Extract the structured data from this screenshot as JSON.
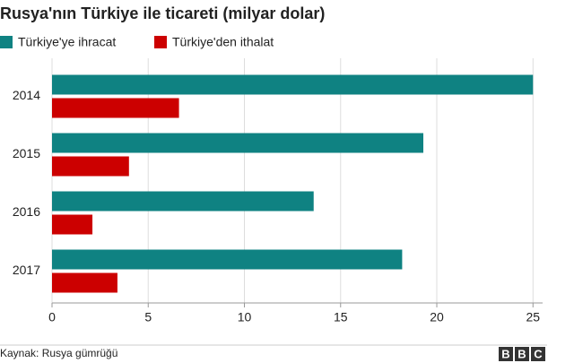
{
  "chart_data": {
    "type": "barh",
    "title": "Rusya'nın Türkiye ile ticareti (milyar dolar)",
    "categories": [
      "2014",
      "2015",
      "2016",
      "2017"
    ],
    "series": [
      {
        "name": "Türkiye'ye ihracat",
        "color": "#0f8282",
        "values": [
          25.0,
          19.3,
          13.6,
          18.2
        ]
      },
      {
        "name": "Türkiye'den ithalat",
        "color": "#cc0000",
        "values": [
          6.6,
          4.0,
          2.1,
          3.4
        ]
      }
    ],
    "xlim": [
      0,
      25.5
    ],
    "xticks": [
      0,
      5,
      10,
      15,
      20,
      25
    ],
    "grid": true,
    "source": "Kaynak: Rusya gümrüğü",
    "logo": [
      "B",
      "B",
      "C"
    ]
  }
}
